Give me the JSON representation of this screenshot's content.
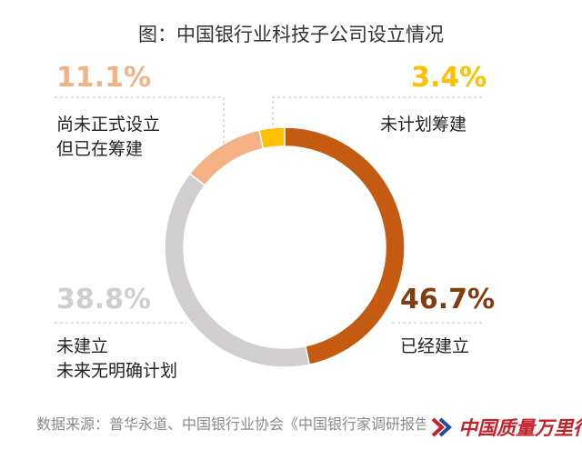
{
  "title": "图：中国银行业科技子公司设立情况",
  "source": "数据来源：普华永道、中国银行业协会《中国银行家调研报告》",
  "watermark": "中国质量万里行",
  "chart_data": {
    "type": "pie",
    "donut": true,
    "slices": [
      {
        "label_lines": [
          "已经建立"
        ],
        "value": 46.7,
        "display": "46.7%",
        "color": "#c55a11"
      },
      {
        "label_lines": [
          "未建立",
          "未来无明确计划"
        ],
        "value": 38.8,
        "display": "38.8%",
        "color": "#d0cece"
      },
      {
        "label_lines": [
          "尚未正式设立",
          "但已在筹建"
        ],
        "value": 11.1,
        "display": "11.1%",
        "color": "#f4b183"
      },
      {
        "label_lines": [
          "未计划筹建"
        ],
        "value": 3.4,
        "display": "3.4%",
        "color": "#ffc000"
      }
    ]
  }
}
